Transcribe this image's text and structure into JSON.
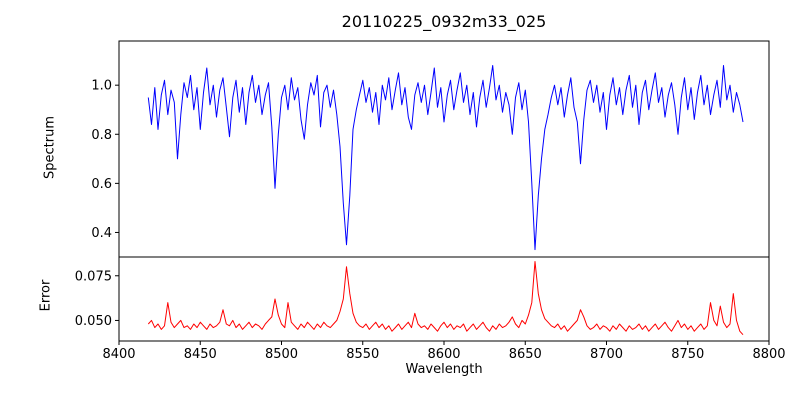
{
  "figure": {
    "title": "20110225_0932m33_025",
    "background": "#ffffff",
    "spine_color": "#000000"
  },
  "chart_data": {
    "type": "line",
    "title": "20110225_0932m33_025",
    "xlabel": "Wavelength",
    "xlim": [
      8400,
      8800
    ],
    "xticks": [
      8400,
      8450,
      8500,
      8550,
      8600,
      8650,
      8700,
      8750,
      8800
    ],
    "x_start": 8418,
    "x_step": 2,
    "grid": false,
    "legend": "none",
    "subplots": [
      {
        "name": "spectrum",
        "ylabel": "Spectrum",
        "color": "#0000ff",
        "ylim": [
          0.3,
          1.18
        ],
        "yticks": [
          0.4,
          0.6,
          0.8,
          1.0
        ],
        "ytick_labels": [
          "0.4",
          "0.6",
          "0.8",
          "1.0"
        ],
        "values": [
          0.95,
          0.84,
          0.99,
          0.82,
          0.96,
          1.02,
          0.88,
          0.98,
          0.93,
          0.7,
          0.88,
          1.01,
          0.95,
          1.04,
          0.9,
          0.99,
          0.82,
          0.97,
          1.07,
          0.92,
          1.0,
          0.87,
          0.98,
          1.03,
          0.91,
          0.79,
          0.95,
          1.02,
          0.89,
          0.99,
          0.84,
          0.97,
          1.04,
          0.93,
          1.0,
          0.88,
          0.96,
          1.01,
          0.83,
          0.58,
          0.8,
          0.95,
          1.0,
          0.9,
          1.03,
          0.94,
          0.99,
          0.86,
          0.78,
          0.92,
          1.01,
          0.96,
          1.04,
          0.83,
          0.97,
          1.0,
          0.91,
          0.98,
          0.88,
          0.75,
          0.52,
          0.35,
          0.55,
          0.82,
          0.9,
          0.96,
          1.02,
          0.93,
          0.99,
          0.89,
          0.97,
          0.84,
          1.0,
          0.94,
          1.03,
          0.9,
          0.98,
          1.05,
          0.92,
          0.99,
          0.87,
          0.82,
          0.96,
          1.01,
          0.93,
          1.0,
          0.88,
          0.97,
          1.07,
          0.91,
          0.99,
          0.85,
          0.96,
          1.02,
          0.9,
          0.98,
          1.05,
          0.93,
          1.0,
          0.88,
          0.97,
          0.83,
          0.95,
          1.02,
          0.91,
          0.99,
          1.08,
          0.94,
          1.0,
          0.89,
          0.97,
          0.92,
          0.8,
          0.95,
          1.01,
          0.9,
          0.98,
          0.85,
          0.6,
          0.33,
          0.55,
          0.7,
          0.82,
          0.88,
          0.95,
          1.0,
          0.92,
          0.99,
          0.87,
          0.96,
          1.03,
          0.91,
          0.85,
          0.68,
          0.86,
          0.98,
          1.02,
          0.93,
          1.0,
          0.89,
          0.97,
          0.82,
          0.96,
          1.03,
          0.92,
          0.99,
          0.88,
          0.98,
          1.04,
          0.91,
          1.0,
          0.84,
          0.97,
          1.02,
          0.9,
          0.98,
          1.05,
          0.93,
          0.99,
          0.87,
          0.96,
          1.01,
          0.92,
          0.8,
          0.95,
          1.03,
          0.9,
          0.99,
          0.86,
          0.97,
          1.04,
          0.92,
          1.0,
          0.88,
          0.96,
          1.02,
          0.91,
          1.08,
          0.94,
          1.0,
          0.89,
          0.97,
          0.92,
          0.85
        ]
      },
      {
        "name": "error",
        "ylabel": "Error",
        "color": "#ff0000",
        "ylim": [
          0.0385,
          0.0855
        ],
        "yticks": [
          0.05,
          0.075
        ],
        "ytick_labels": [
          "0.050",
          "0.075"
        ],
        "values": [
          0.048,
          0.05,
          0.046,
          0.048,
          0.045,
          0.047,
          0.06,
          0.049,
          0.046,
          0.048,
          0.05,
          0.046,
          0.047,
          0.045,
          0.048,
          0.046,
          0.049,
          0.047,
          0.045,
          0.048,
          0.046,
          0.047,
          0.049,
          0.056,
          0.048,
          0.047,
          0.05,
          0.046,
          0.048,
          0.045,
          0.047,
          0.049,
          0.046,
          0.048,
          0.047,
          0.045,
          0.048,
          0.05,
          0.052,
          0.062,
          0.053,
          0.048,
          0.046,
          0.06,
          0.049,
          0.047,
          0.045,
          0.048,
          0.046,
          0.049,
          0.047,
          0.045,
          0.048,
          0.046,
          0.049,
          0.047,
          0.046,
          0.048,
          0.05,
          0.055,
          0.062,
          0.08,
          0.065,
          0.054,
          0.049,
          0.047,
          0.046,
          0.048,
          0.045,
          0.047,
          0.049,
          0.046,
          0.048,
          0.045,
          0.047,
          0.044,
          0.046,
          0.048,
          0.045,
          0.047,
          0.049,
          0.046,
          0.054,
          0.048,
          0.046,
          0.047,
          0.045,
          0.048,
          0.046,
          0.044,
          0.047,
          0.049,
          0.046,
          0.048,
          0.045,
          0.047,
          0.046,
          0.048,
          0.044,
          0.046,
          0.048,
          0.045,
          0.047,
          0.049,
          0.046,
          0.044,
          0.047,
          0.045,
          0.048,
          0.046,
          0.047,
          0.049,
          0.052,
          0.048,
          0.046,
          0.05,
          0.048,
          0.053,
          0.06,
          0.083,
          0.065,
          0.056,
          0.051,
          0.049,
          0.047,
          0.046,
          0.048,
          0.045,
          0.047,
          0.044,
          0.046,
          0.048,
          0.05,
          0.056,
          0.052,
          0.047,
          0.045,
          0.046,
          0.048,
          0.045,
          0.047,
          0.046,
          0.044,
          0.047,
          0.045,
          0.048,
          0.046,
          0.044,
          0.047,
          0.045,
          0.046,
          0.048,
          0.045,
          0.047,
          0.044,
          0.046,
          0.048,
          0.045,
          0.047,
          0.049,
          0.046,
          0.044,
          0.047,
          0.05,
          0.046,
          0.048,
          0.045,
          0.047,
          0.044,
          0.046,
          0.048,
          0.045,
          0.047,
          0.06,
          0.05,
          0.047,
          0.058,
          0.049,
          0.046,
          0.048,
          0.065,
          0.05,
          0.044,
          0.042
        ]
      }
    ]
  }
}
